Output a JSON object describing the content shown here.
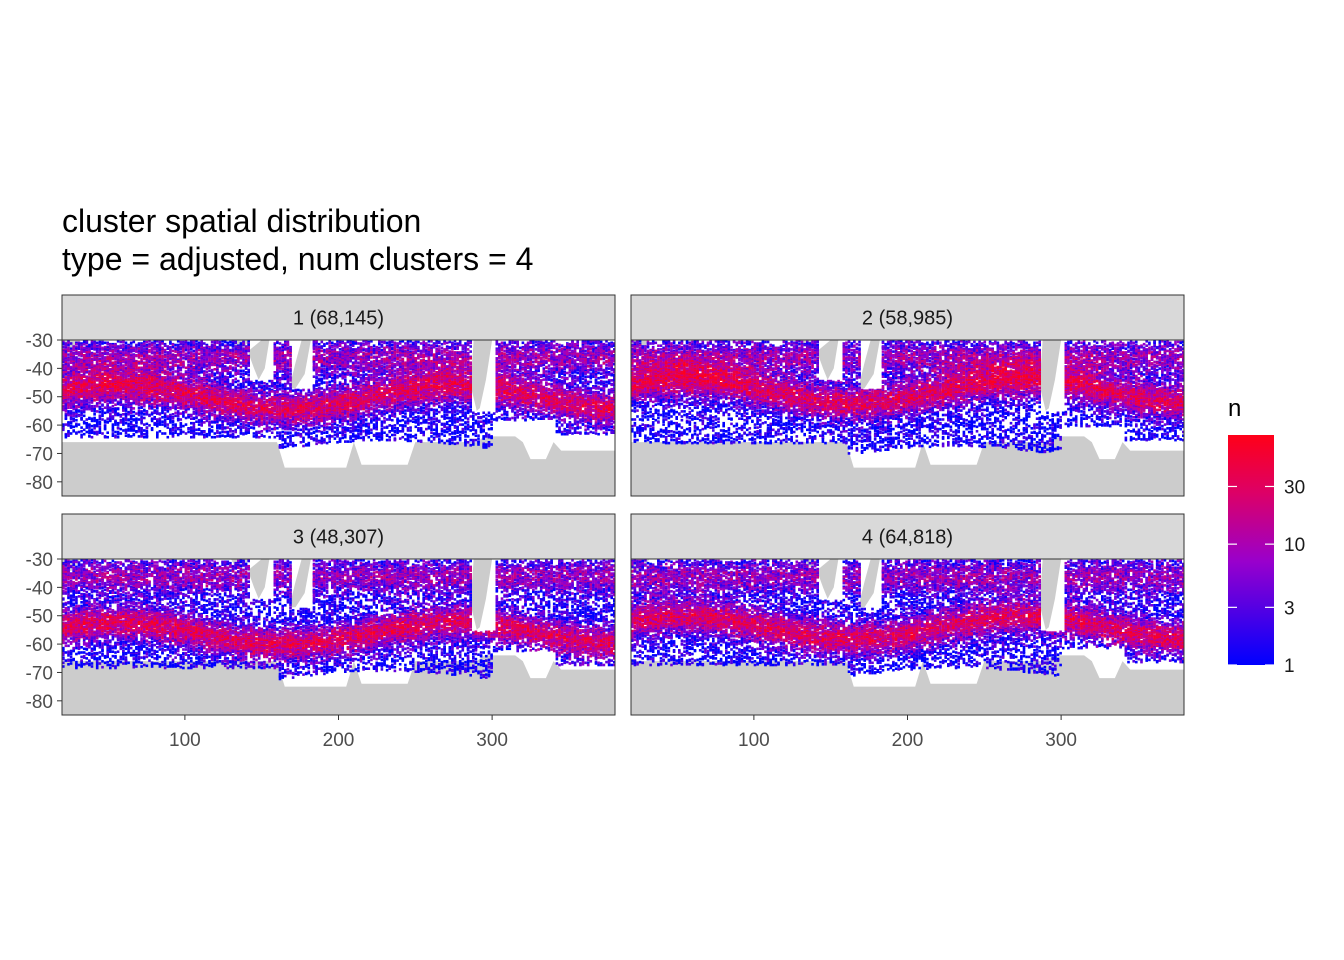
{
  "chart_data": {
    "type": "heatmap",
    "title": "cluster spatial distribution",
    "subtitle": "type = adjusted, num clusters = 4",
    "xlabel": "",
    "ylabel": "",
    "xlim": [
      20,
      380
    ],
    "ylim": [
      -85,
      -30
    ],
    "x_ticks": [
      100,
      200,
      300
    ],
    "y_ticks": [
      -30,
      -40,
      -50,
      -60,
      -70,
      -80
    ],
    "facets": [
      {
        "label": "1 (68,145)",
        "cluster": 1,
        "count": 68145
      },
      {
        "label": "2 (58,985)",
        "cluster": 2,
        "count": 58985
      },
      {
        "label": "3 (48,307)",
        "cluster": 3,
        "count": 48307
      },
      {
        "label": "4 (64,818)",
        "cluster": 4,
        "count": 64818
      }
    ],
    "legend": {
      "title": "n",
      "scale": "log",
      "breaks": [
        1,
        3,
        10,
        30
      ],
      "range": [
        1,
        80
      ],
      "low_color": "#0000ff",
      "high_color": "#ff0000"
    },
    "land_color": "#cccccc",
    "grid": false
  }
}
